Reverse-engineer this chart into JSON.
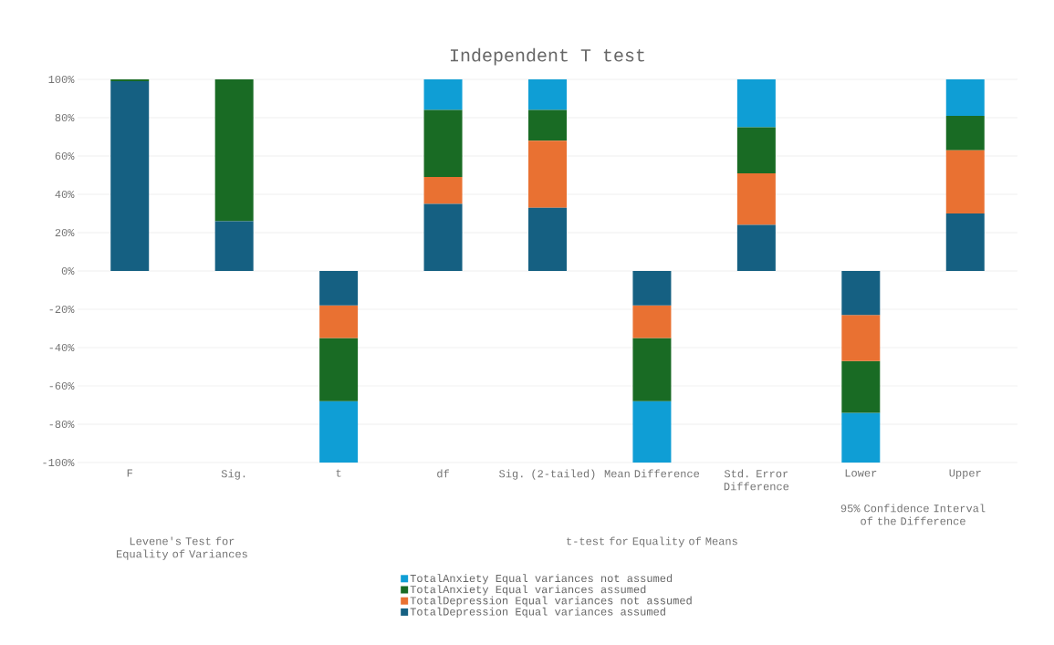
{
  "chart_data": {
    "type": "bar",
    "stacked": true,
    "title": "Independent  T test",
    "categories": [
      "F",
      "Sig.",
      "t",
      "df",
      "Sig. (2-tailed)",
      "Mean Difference",
      "Std. Error Difference",
      "Lower",
      "Upper"
    ],
    "series": [
      {
        "name": "TotalDepression Equal variances assumed",
        "color": "#156082",
        "values": [
          99,
          26,
          -18,
          35,
          33,
          -18,
          24,
          -23,
          30
        ]
      },
      {
        "name": "TotalDepression Equal variances not assumed",
        "color": "#e97132",
        "values": [
          0,
          0,
          -17,
          14,
          35,
          -17,
          27,
          -24,
          33
        ]
      },
      {
        "name": "TotalAnxiety Equal variances assumed",
        "color": "#196b24",
        "values": [
          1,
          74,
          -33,
          35,
          16,
          -33,
          24,
          -27,
          18
        ]
      },
      {
        "name": "TotalAnxiety Equal variances not assumed",
        "color": "#0f9ed5",
        "values": [
          0,
          0,
          -32,
          16,
          16,
          -32,
          25,
          -26,
          19
        ]
      }
    ],
    "ylim": [
      -100,
      100
    ],
    "yticks": [
      {
        "value": -100,
        "label": "-100%"
      },
      {
        "value": -80,
        "label": "-80%"
      },
      {
        "value": -60,
        "label": "-60%"
      },
      {
        "value": -40,
        "label": "-40%"
      },
      {
        "value": -20,
        "label": "-20%"
      },
      {
        "value": 0,
        "label": "0%"
      },
      {
        "value": 20,
        "label": "20%"
      },
      {
        "value": 40,
        "label": "40%"
      },
      {
        "value": 60,
        "label": "60%"
      },
      {
        "value": 80,
        "label": "80%"
      },
      {
        "value": 100,
        "label": "100%"
      }
    ],
    "grid": "y",
    "legend": "bottom",
    "annotations": [
      "Levene's Test for Equality of Variances",
      "t-test for Equality of Means",
      "95% Confidence Interval of the Difference"
    ]
  }
}
